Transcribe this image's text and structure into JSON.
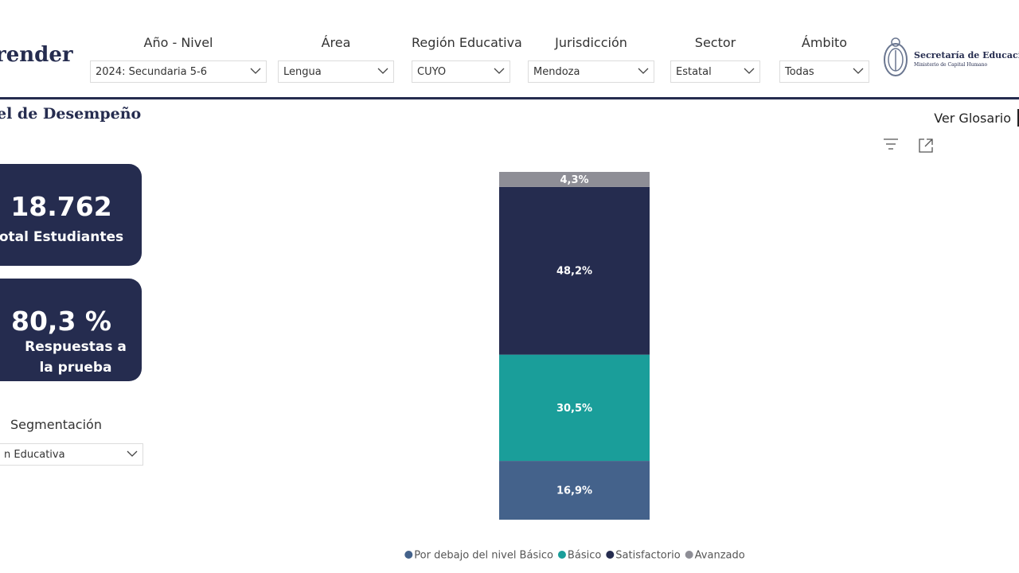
{
  "header": {
    "brand": "render",
    "filters": [
      {
        "label": "Año - Nivel",
        "value": "2024: Secundaria 5-6"
      },
      {
        "label": "Área",
        "value": "Lengua"
      },
      {
        "label": "Región Educativa",
        "value": "CUYO"
      },
      {
        "label": "Jurisdicción",
        "value": "Mendoza"
      },
      {
        "label": "Sector",
        "value": "Estatal"
      },
      {
        "label": "Ámbito",
        "value": "Todas"
      }
    ],
    "logo_title": "Secretaría de Educación",
    "logo_subtitle": "Ministerio de Capital Humano"
  },
  "section_title": "el de Desempeño",
  "glossary_link": "Ver Glosario",
  "kpis": [
    {
      "value": "18.762",
      "label": "otal Estudiantes"
    },
    {
      "value": "80,3 %",
      "label": "Respuestas a la prueba"
    }
  ],
  "segmentation": {
    "label": "Segmentación",
    "value": "n Educativa"
  },
  "chart_data": {
    "type": "stacked_bar",
    "categories": [
      null
    ],
    "series": [
      {
        "name": "Por debajo del nivel Básico",
        "color": "#44628b",
        "values": [
          16.9
        ],
        "value_labels": [
          "16,9%"
        ]
      },
      {
        "name": "Básico",
        "color": "#1a9e9a",
        "values": [
          30.5
        ],
        "value_labels": [
          "30,5%"
        ]
      },
      {
        "name": "Satisfactorio",
        "color": "#252c4f",
        "values": [
          48.2
        ],
        "value_labels": [
          "48,2%"
        ]
      },
      {
        "name": "Avanzado",
        "color": "#8e8e96",
        "values": [
          4.3
        ],
        "value_labels": [
          "4,3%"
        ]
      }
    ]
  }
}
